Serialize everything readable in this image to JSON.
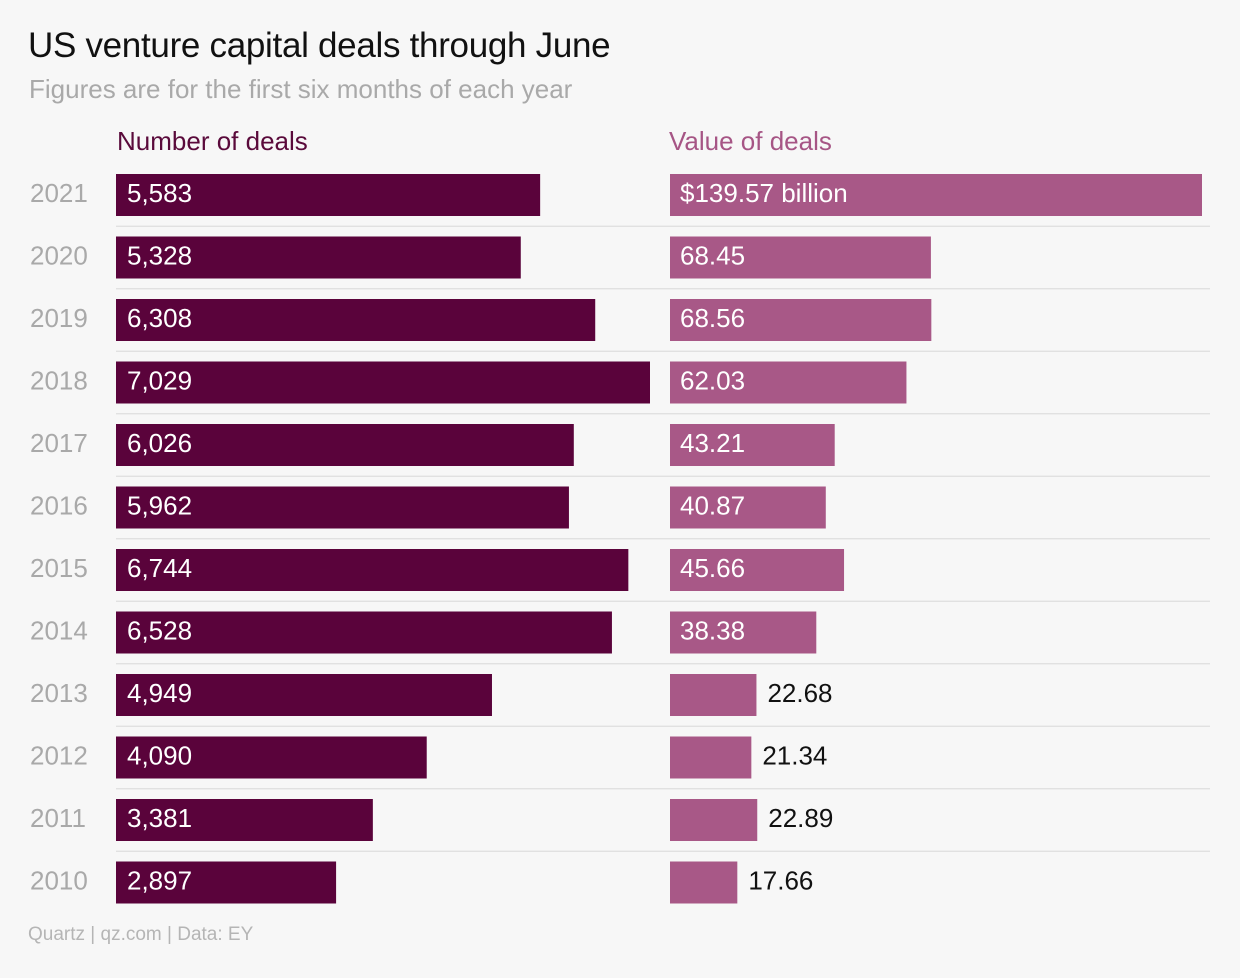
{
  "title": "US venture capital deals through June",
  "subtitle": "Figures are for the first six months of each year",
  "source": "Quartz | qz.com | Data: EY",
  "colors": {
    "deals_bar": "#5a033b",
    "value_bar": "#a85887",
    "deals_header": "#5a0a3b",
    "value_header": "#a65585",
    "year_label": "#a9a9a9",
    "divider": "#dedede"
  },
  "chart_data": [
    {
      "type": "bar",
      "orientation": "horizontal",
      "title": "Number of deals",
      "categories": [
        "2021",
        "2020",
        "2019",
        "2018",
        "2017",
        "2016",
        "2015",
        "2014",
        "2013",
        "2012",
        "2011",
        "2010"
      ],
      "values": [
        5583,
        5328,
        6308,
        7029,
        6026,
        5962,
        6744,
        6528,
        4949,
        4090,
        3381,
        2897
      ],
      "labels": [
        "5,583",
        "5,328",
        "6,308",
        "7,029",
        "6,026",
        "5,962",
        "6,744",
        "6,528",
        "4,949",
        "4,090",
        "3,381",
        "2,897"
      ],
      "xlim": [
        0,
        7029
      ]
    },
    {
      "type": "bar",
      "orientation": "horizontal",
      "title": "Value of deals",
      "categories": [
        "2021",
        "2020",
        "2019",
        "2018",
        "2017",
        "2016",
        "2015",
        "2014",
        "2013",
        "2012",
        "2011",
        "2010"
      ],
      "values": [
        139.57,
        68.45,
        68.56,
        62.03,
        43.21,
        40.87,
        45.66,
        38.38,
        22.68,
        21.34,
        22.89,
        17.66
      ],
      "labels": [
        "$139.57 billion",
        "68.45",
        "68.56",
        "62.03",
        "43.21",
        "40.87",
        "45.66",
        "38.38",
        "22.68",
        "21.34",
        "22.89",
        "17.66"
      ],
      "unit": "billion",
      "xlim": [
        0,
        139.57
      ]
    }
  ]
}
